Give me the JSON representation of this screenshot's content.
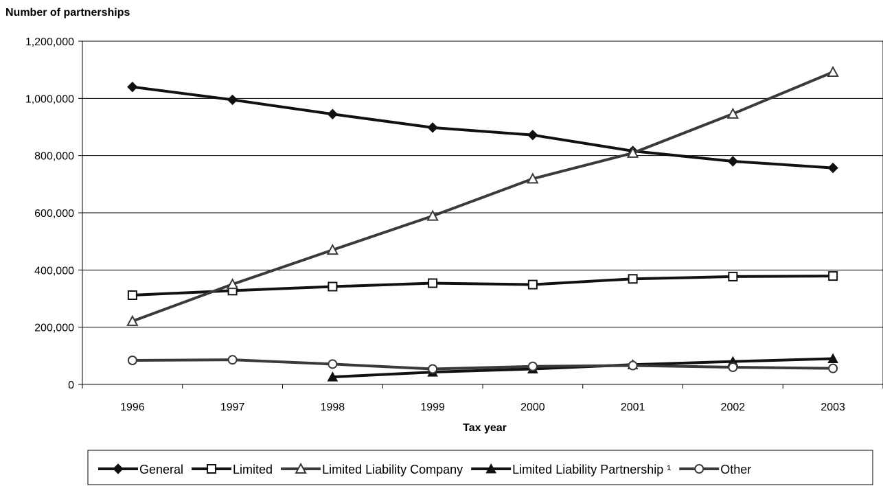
{
  "chart_data": {
    "type": "line",
    "ylabel": "Number of partnerships",
    "xlabel": "Tax year",
    "ylim": [
      0,
      1200000
    ],
    "yticks": [
      0,
      200000,
      400000,
      600000,
      800000,
      1000000,
      1200000
    ],
    "ytick_labels": [
      "0",
      "200,000",
      "400,000",
      "600,000",
      "800,000",
      "1,000,000",
      "1,200,000"
    ],
    "categories": [
      "1996",
      "1997",
      "1998",
      "1999",
      "2000",
      "2001",
      "2002",
      "2003"
    ],
    "grid": "horizontal",
    "legend_position": "bottom",
    "series": [
      {
        "name": "General",
        "marker": "diamond-filled",
        "color": "#111111",
        "values": [
          1040000,
          995000,
          945000,
          898000,
          872000,
          816000,
          780000,
          757000
        ]
      },
      {
        "name": "Limited",
        "marker": "square-open",
        "color": "#111111",
        "values": [
          312000,
          328000,
          342000,
          354000,
          349000,
          369000,
          377000,
          379000
        ]
      },
      {
        "name": "Limited Liability Company",
        "marker": "triangle-open",
        "color": "#3a3a3a",
        "values": [
          221000,
          350000,
          470000,
          589000,
          719000,
          809000,
          946000,
          1092000
        ]
      },
      {
        "name": "Limited Liability Partnership ¹",
        "marker": "triangle-filled",
        "color": "#111111",
        "values": [
          null,
          null,
          26000,
          43000,
          54000,
          69000,
          80000,
          90000
        ]
      },
      {
        "name": "Other",
        "marker": "circle-open",
        "color": "#3a3a3a",
        "values": [
          84000,
          86000,
          71000,
          54000,
          63000,
          66000,
          60000,
          56000
        ]
      }
    ]
  }
}
